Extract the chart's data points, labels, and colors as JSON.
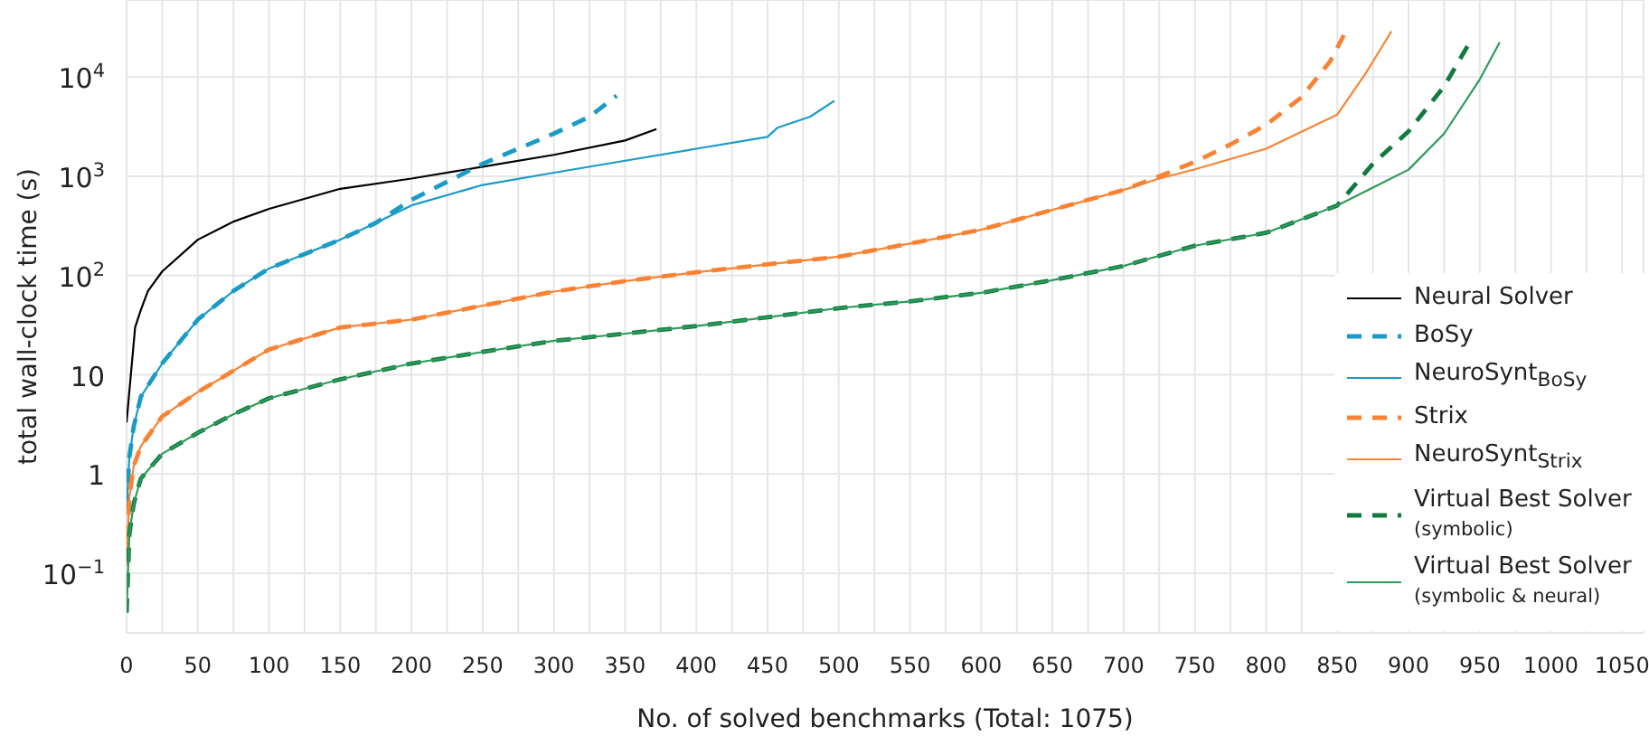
{
  "chart_data": {
    "type": "line",
    "xlabel": "No. of solved benchmarks (Total: 1075)",
    "ylabel": "total wall-clock time (s)",
    "log": "y",
    "grid": true,
    "legend": "bottom right",
    "marker": "none",
    "xlim": [
      0,
      1065
    ],
    "xticks": [
      0,
      {
        "value": 25,
        "label": null
      },
      50,
      {
        "value": 75,
        "label": null
      },
      100,
      {
        "value": 125,
        "label": null
      },
      150,
      {
        "value": 175,
        "label": null
      },
      200,
      {
        "value": 225,
        "label": null
      },
      250,
      {
        "value": 275,
        "label": null
      },
      300,
      {
        "value": 325,
        "label": null
      },
      350,
      {
        "value": 375,
        "label": null
      },
      400,
      {
        "value": 425,
        "label": null
      },
      450,
      {
        "value": 475,
        "label": null
      },
      500,
      {
        "value": 525,
        "label": null
      },
      550,
      {
        "value": 575,
        "label": null
      },
      600,
      {
        "value": 625,
        "label": null
      },
      650,
      {
        "value": 675,
        "label": null
      },
      700,
      {
        "value": 725,
        "label": null
      },
      750,
      {
        "value": 775,
        "label": null
      },
      800,
      {
        "value": 825,
        "label": null
      },
      850,
      {
        "value": 875,
        "label": null
      },
      900,
      {
        "value": 925,
        "label": null
      },
      950,
      {
        "value": 975,
        "label": null
      },
      1000,
      {
        "value": 1025,
        "label": null
      },
      1050
    ],
    "ylim": [
      0.025,
      60000
    ],
    "yticks": [
      {
        "value": 0.1,
        "label": "10$^{−1}$"
      },
      1,
      10,
      {
        "value": 100,
        "label": "10$^{2}$"
      },
      {
        "value": 1000,
        "label": "10$^{3}$"
      },
      {
        "value": 10000,
        "label": "10$^{4}$"
      }
    ],
    "series": [
      {
        "name": "Neural Solver",
        "color": "#000000",
        "line_style": "solid",
        "x": [
          0,
          3,
          6,
          10,
          15,
          25,
          50,
          75,
          100,
          150,
          200,
          250,
          300,
          350,
          372
        ],
        "values": [
          3.3,
          10,
          30,
          45,
          70,
          110,
          230,
          350,
          470,
          750,
          950,
          1250,
          1650,
          2300,
          3000
        ]
      },
      {
        "name": "BoSy",
        "color": "#1a9bc6",
        "line_style": "dashed",
        "x": [
          0,
          2,
          5,
          10,
          25,
          50,
          75,
          100,
          150,
          175,
          200,
          250,
          275,
          300,
          325,
          344
        ],
        "values": [
          0.45,
          1.5,
          3,
          6,
          13,
          36,
          70,
          118,
          230,
          340,
          580,
          1340,
          1900,
          2700,
          4000,
          6500
        ]
      },
      {
        "name": "NeuroSynt$_{BoSy}$",
        "color": "#1a9bc6",
        "line_style": "solid",
        "x": [
          0,
          2,
          5,
          10,
          25,
          50,
          75,
          100,
          150,
          175,
          200,
          250,
          300,
          350,
          400,
          450,
          457,
          480,
          497
        ],
        "values": [
          0.45,
          1.5,
          3,
          6,
          13,
          36,
          70,
          118,
          230,
          340,
          510,
          820,
          1090,
          1440,
          1900,
          2500,
          3100,
          4000,
          5800
        ]
      },
      {
        "name": "Strix",
        "color": "#f98333",
        "line_style": "dashed",
        "x": [
          0,
          2,
          5,
          10,
          25,
          50,
          100,
          150,
          200,
          300,
          350,
          400,
          450,
          500,
          550,
          600,
          650,
          700,
          725,
          750,
          775,
          800,
          825,
          845,
          856
        ],
        "values": [
          0.12,
          0.6,
          1.2,
          1.9,
          3.8,
          6.7,
          18,
          30,
          36,
          69,
          88,
          108,
          130,
          155,
          210,
          290,
          460,
          730,
          1000,
          1400,
          2100,
          3300,
          6300,
          14500,
          29000
        ]
      },
      {
        "name": "NeuroSynt$_{Strix}$",
        "color": "#f98333",
        "line_style": "solid",
        "x": [
          0,
          2,
          5,
          10,
          25,
          50,
          100,
          150,
          200,
          300,
          350,
          400,
          450,
          500,
          550,
          600,
          650,
          700,
          725,
          750,
          800,
          850,
          870,
          888
        ],
        "values": [
          0.12,
          0.6,
          1.2,
          1.9,
          3.8,
          6.7,
          18,
          30,
          36,
          69,
          88,
          108,
          130,
          155,
          210,
          290,
          460,
          730,
          950,
          1180,
          1900,
          4200,
          11000,
          29000
        ]
      },
      {
        "name": "Virtual Best Solver (symbolic)",
        "color": "#117a3e",
        "line_style": "dashed",
        "x": [
          0,
          2,
          5,
          10,
          25,
          50,
          75,
          100,
          150,
          200,
          250,
          300,
          350,
          400,
          450,
          500,
          550,
          600,
          650,
          700,
          750,
          800,
          825,
          850,
          875,
          900,
          925,
          943
        ],
        "values": [
          0.04,
          0.25,
          0.5,
          0.9,
          1.6,
          2.6,
          4,
          5.8,
          9,
          13,
          17,
          22,
          26,
          31,
          38,
          47,
          55,
          67,
          90,
          125,
          200,
          270,
          370,
          510,
          1340,
          2850,
          8100,
          22500
        ]
      },
      {
        "name": "Virtual Best Solver (symbolic & neural)",
        "color": "#2e9a5c",
        "line_style": "solid",
        "x": [
          0,
          2,
          5,
          10,
          25,
          50,
          75,
          100,
          150,
          200,
          250,
          300,
          350,
          400,
          450,
          500,
          550,
          600,
          650,
          700,
          750,
          800,
          825,
          850,
          900,
          925,
          950,
          964
        ],
        "values": [
          0.04,
          0.25,
          0.5,
          0.9,
          1.6,
          2.6,
          4,
          5.8,
          9,
          13,
          17,
          22,
          26,
          31,
          38,
          47,
          55,
          67,
          90,
          125,
          200,
          270,
          370,
          510,
          1170,
          2700,
          9500,
          22500
        ]
      }
    ]
  }
}
